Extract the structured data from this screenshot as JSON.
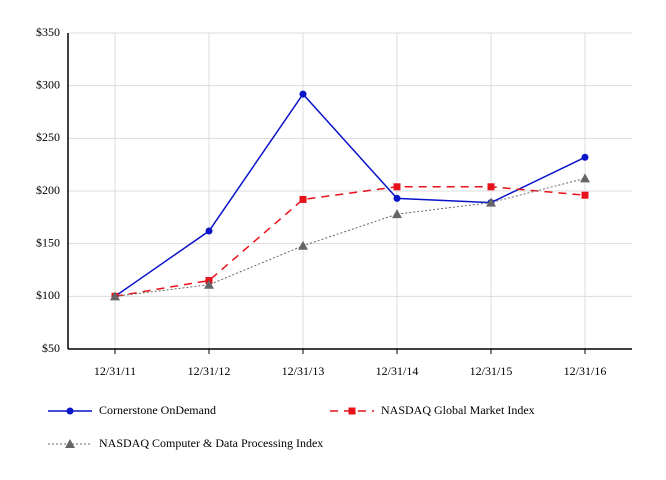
{
  "chart_data": {
    "type": "line",
    "categories": [
      "12/31/11",
      "12/31/12",
      "12/31/13",
      "12/31/14",
      "12/31/15",
      "12/31/16"
    ],
    "series": [
      {
        "name": "Cornerstone OnDemand",
        "color": "#0a14c8",
        "marker": "circle",
        "dash": "none",
        "values": [
          100,
          162,
          292,
          193,
          189,
          232
        ]
      },
      {
        "name": "NASDAQ Global Market Index",
        "color": "#e8111a",
        "marker": "square",
        "dash": "8,6",
        "values": [
          100,
          115,
          192,
          204,
          204,
          196
        ]
      },
      {
        "name": "NASDAQ Computer & Data Processing Index",
        "color": "#666666",
        "marker": "triangle",
        "dash": "2,2",
        "values": [
          100,
          111,
          148,
          178,
          189,
          212
        ]
      }
    ],
    "ylim": [
      50,
      350
    ],
    "yticks": [
      {
        "value": 50,
        "label": "$50"
      },
      {
        "value": 100,
        "label": "$100"
      },
      {
        "value": 150,
        "label": "$150"
      },
      {
        "value": 200,
        "label": "$200"
      },
      {
        "value": 250,
        "label": "$250"
      },
      {
        "value": 300,
        "label": "$300"
      },
      {
        "value": 350,
        "label": "$350"
      }
    ],
    "grid": true
  }
}
